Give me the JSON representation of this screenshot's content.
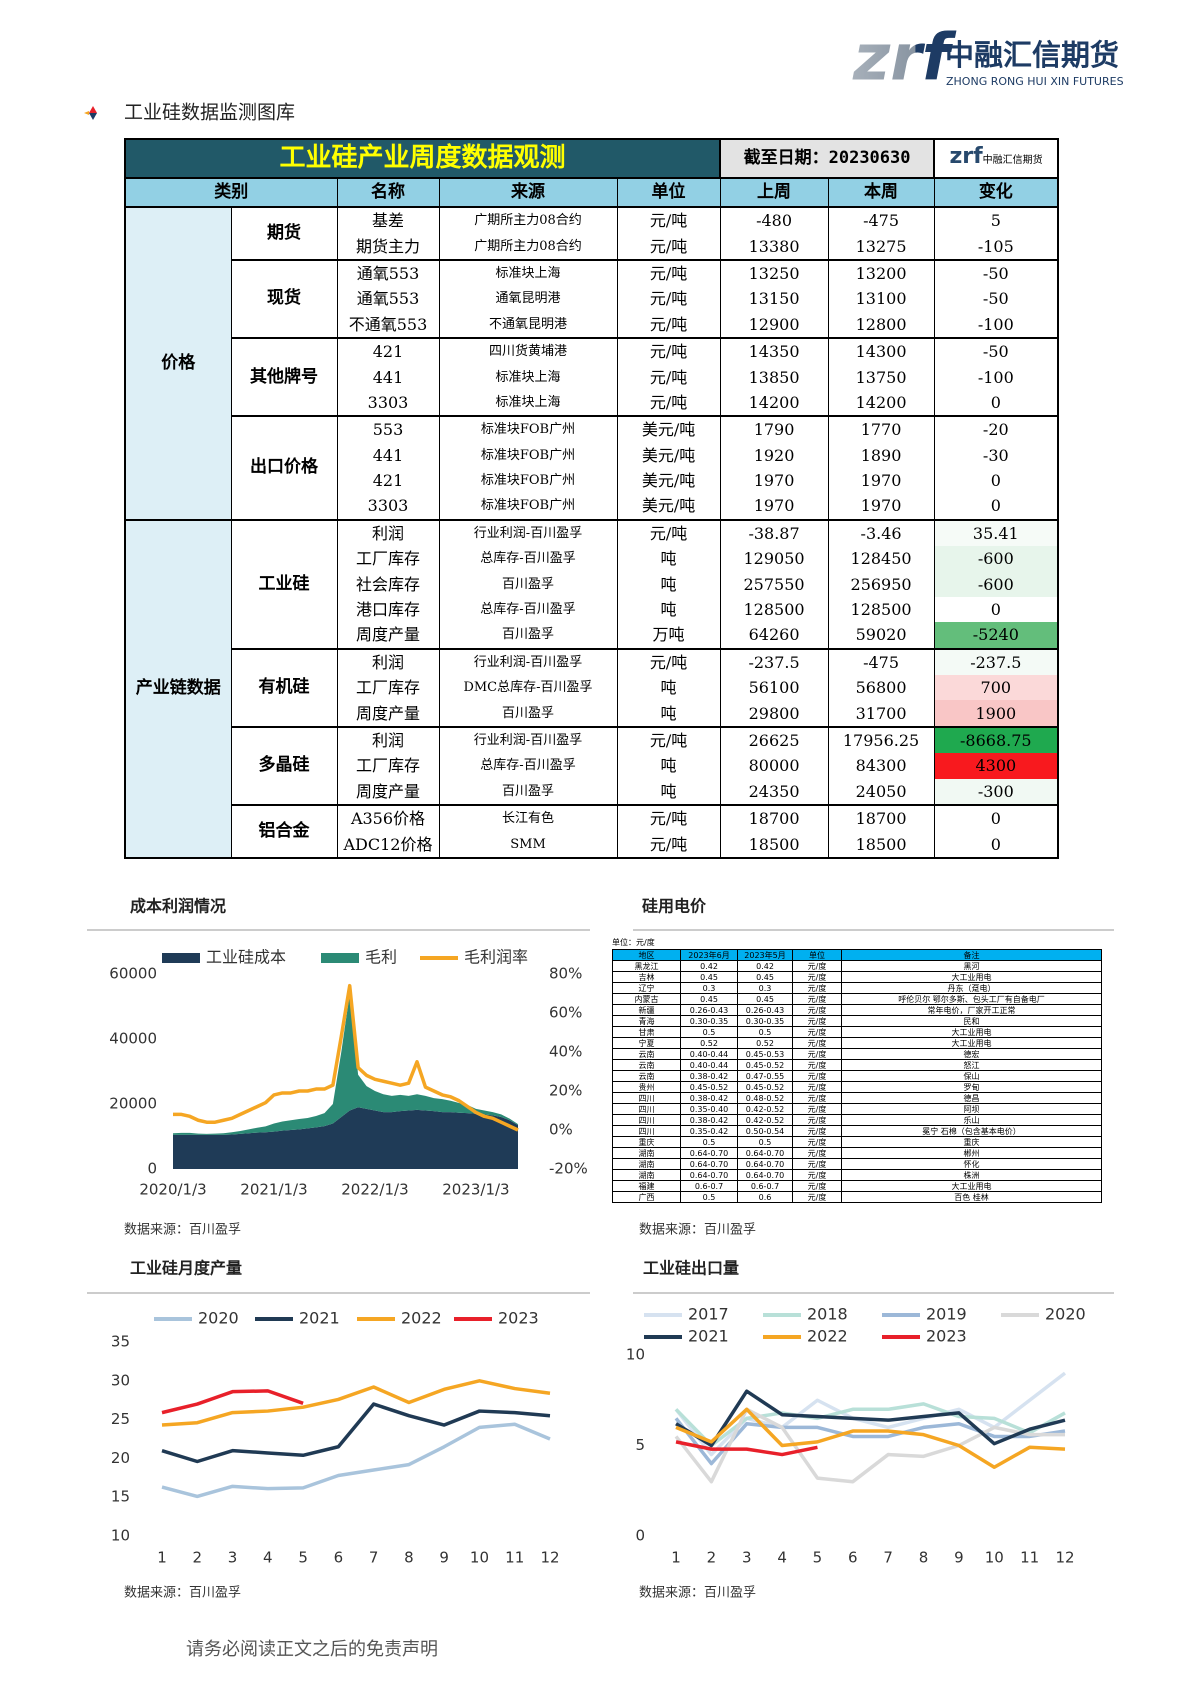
{
  "header": {
    "logo_mark": "zrf",
    "company": "中融汇信期货",
    "company_en": "ZHONG RONG HUI XIN FUTURES",
    "section_title": "工业硅数据监测图库"
  },
  "table": {
    "title": "工业硅产业周度数据观测",
    "date": "截至日期：20230630",
    "header": [
      "类别",
      "名称",
      "来源",
      "单位",
      "上周",
      "本周",
      "变化"
    ],
    "groups": [
      {
        "name": "价格",
        "subgroups": [
          {
            "name": "期货",
            "rows": [
              [
                "基差",
                "广期所主力08合约",
                "元/吨",
                "-480",
                "-475",
                "5"
              ],
              [
                "期货主力",
                "广期所主力08合约",
                "元/吨",
                "13380",
                "13275",
                "-105"
              ]
            ]
          },
          {
            "name": "现货",
            "rows": [
              [
                "通氧553",
                "标准块上海",
                "元/吨",
                "13250",
                "13200",
                "-50"
              ],
              [
                "通氧553",
                "通氧昆明港",
                "元/吨",
                "13150",
                "13100",
                "-50"
              ],
              [
                "不通氧553",
                "不通氧昆明港",
                "元/吨",
                "12900",
                "12800",
                "-100"
              ]
            ]
          },
          {
            "name": "其他牌号",
            "rows": [
              [
                "421",
                "四川货黄埔港",
                "元/吨",
                "14350",
                "14300",
                "-50"
              ],
              [
                "441",
                "标准块上海",
                "元/吨",
                "13850",
                "13750",
                "-100"
              ],
              [
                "3303",
                "标准块上海",
                "元/吨",
                "14200",
                "14200",
                "0"
              ]
            ]
          },
          {
            "name": "出口价格",
            "rows": [
              [
                "553",
                "标准块FOB广州",
                "美元/吨",
                "1790",
                "1770",
                "-20"
              ],
              [
                "441",
                "标准块FOB广州",
                "美元/吨",
                "1920",
                "1890",
                "-30"
              ],
              [
                "421",
                "标准块FOB广州",
                "美元/吨",
                "1970",
                "1970",
                "0"
              ],
              [
                "3303",
                "标准块FOB广州",
                "美元/吨",
                "1970",
                "1970",
                "0"
              ]
            ]
          }
        ]
      },
      {
        "name": "产业链数据",
        "subgroups": [
          {
            "name": "工业硅",
            "rows": [
              [
                "利润",
                "行业利润-百川盈孚",
                "元/吨",
                "-38.87",
                "-3.46",
                "35.41"
              ],
              [
                "工厂库存",
                "总库存-百川盈孚",
                "吨",
                "129050",
                "128450",
                "-600"
              ],
              [
                "社会库存",
                "百川盈孚",
                "吨",
                "257550",
                "256950",
                "-600"
              ],
              [
                "港口库存",
                "总库存-百川盈孚",
                "吨",
                "128500",
                "128500",
                "0"
              ],
              [
                "周度产量",
                "百川盈孚",
                "万吨",
                "64260",
                "59020",
                "-5240"
              ]
            ],
            "change_colors": [
              "#f6fbf7",
              "#e7f5eb",
              "#e7f5eb",
              "#ffffff",
              "#63be7b"
            ]
          },
          {
            "name": "有机硅",
            "rows": [
              [
                "利润",
                "行业利润-百川盈孚",
                "元/吨",
                "-237.5",
                "-475",
                "-237.5"
              ],
              [
                "工厂库存",
                "DMC总库存-百川盈孚",
                "吨",
                "56100",
                "56800",
                "700"
              ],
              [
                "周度产量",
                "百川盈孚",
                "吨",
                "29800",
                "31700",
                "1900"
              ]
            ],
            "change_colors": [
              "#f4faf6",
              "#fbd9d9",
              "#f9c6c6"
            ]
          },
          {
            "name": "多晶硅",
            "rows": [
              [
                "利润",
                "行业利润-百川盈孚",
                "元/吨",
                "26625",
                "17956.25",
                "-8668.75"
              ],
              [
                "工厂库存",
                "总库存-百川盈孚",
                "吨",
                "80000",
                "84300",
                "4300"
              ],
              [
                "周度产量",
                "百川盈孚",
                "吨",
                "24350",
                "24050",
                "-300"
              ]
            ],
            "change_colors": [
              "#1fa94f",
              "#f8191e",
              "#f1f9f3"
            ]
          },
          {
            "name": "铝合金",
            "rows": [
              [
                "A356价格",
                "长江有色",
                "元/吨",
                "18700",
                "18700",
                "0"
              ],
              [
                "ADC12价格",
                "SMM",
                "元/吨",
                "18500",
                "18500",
                "0"
              ]
            ]
          }
        ]
      }
    ]
  },
  "power_table": {
    "title": "硅用电价",
    "unit": "单位：元/度",
    "header": [
      "地区",
      "2023年6月",
      "2023年5月",
      "单位",
      "备注"
    ],
    "rows": [
      [
        "黑龙江",
        "0.42",
        "0.42",
        "元/度",
        "黑河"
      ],
      [
        "吉林",
        "0.45",
        "0.45",
        "元/度",
        "大工业用电"
      ],
      [
        "辽宁",
        "0.3",
        "0.3",
        "元/度",
        "丹东（趸电）"
      ],
      [
        "内蒙古",
        "0.45",
        "0.45",
        "元/度",
        "呼伦贝尔 鄂尔多斯、包头工厂有自备电厂"
      ],
      [
        "新疆",
        "0.26-0.43",
        "0.26-0.43",
        "元/度",
        "常年电价，厂家开工正常"
      ],
      [
        "青海",
        "0.30-0.35",
        "0.30-0.35",
        "元/度",
        "民和"
      ],
      [
        "甘肃",
        "0.5",
        "0.5",
        "元/度",
        "大工业用电"
      ],
      [
        "宁夏",
        "0.52",
        "0.52",
        "元/度",
        "大工业用电"
      ],
      [
        "云南",
        "0.40-0.44",
        "0.45-0.53",
        "元/度",
        "德宏"
      ],
      [
        "云南",
        "0.40-0.44",
        "0.45-0.52",
        "元/度",
        "怒江"
      ],
      [
        "云南",
        "0.38-0.42",
        "0.47-0.55",
        "元/度",
        "保山"
      ],
      [
        "贵州",
        "0.45-0.52",
        "0.45-0.52",
        "元/度",
        "罗甸"
      ],
      [
        "四川",
        "0.38-0.42",
        "0.48-0.52",
        "元/度",
        "德昌"
      ],
      [
        "四川",
        "0.35-0.40",
        "0.42-0.52",
        "元/度",
        "阿坝"
      ],
      [
        "四川",
        "0.38-0.42",
        "0.42-0.52",
        "元/度",
        "乐山"
      ],
      [
        "四川",
        "0.35-0.42",
        "0.50-0.54",
        "元/度",
        "冕宁 石棉（包含基本电价）"
      ],
      [
        "重庆",
        "0.5",
        "0.5",
        "元/度",
        "重庆"
      ],
      [
        "湖南",
        "0.64-0.70",
        "0.64-0.70",
        "元/度",
        "郴州"
      ],
      [
        "湖南",
        "0.64-0.70",
        "0.64-0.70",
        "元/度",
        "怀化"
      ],
      [
        "湖南",
        "0.64-0.70",
        "0.64-0.70",
        "元/度",
        "株洲"
      ],
      [
        "福建",
        "0.6-0.7",
        "0.6-0.7",
        "元/度",
        "大工业用电"
      ],
      [
        "广西",
        "0.5",
        "0.6",
        "元/度",
        "百色 桂林"
      ]
    ],
    "source": "数据来源：百川盈孚"
  },
  "chart_data": [
    {
      "type": "area",
      "title": "成本利润情况",
      "source": "数据来源：百川盈孚",
      "categories": [
        "2020/1/3",
        null,
        null,
        null,
        null,
        null,
        null,
        null,
        null,
        null,
        null,
        null,
        "2021/1/3",
        null,
        null,
        null,
        null,
        null,
        null,
        null,
        null,
        null,
        null,
        null,
        "2022/1/3",
        null,
        null,
        null,
        null,
        null,
        null,
        null,
        null,
        null,
        null,
        null,
        "2023/1/3",
        null,
        null,
        null,
        null,
        null
      ],
      "series": [
        {
          "name": "工业硅成本",
          "type": "area",
          "color": "#1f3b57",
          "values": [
            10500,
            10500,
            10500,
            10500,
            10500,
            10500,
            10500,
            10600,
            10800,
            11000,
            11200,
            11300,
            11500,
            11800,
            12000,
            12200,
            12500,
            12800,
            13200,
            14000,
            16000,
            18000,
            19000,
            18500,
            18000,
            17500,
            17500,
            17800,
            18000,
            18200,
            18000,
            17800,
            17500,
            17500,
            17300,
            17200,
            17000,
            16800,
            16500,
            16000,
            15000,
            13500
          ]
        },
        {
          "name": "毛利",
          "type": "area",
          "color": "#2b8a75",
          "values": [
            500,
            600,
            600,
            400,
            300,
            400,
            500,
            700,
            900,
            1200,
            1500,
            1800,
            2500,
            2800,
            3000,
            3200,
            3200,
            3500,
            4000,
            6000,
            20000,
            36000,
            10000,
            7000,
            6000,
            5500,
            5000,
            5000,
            4500,
            4800,
            4500,
            4000,
            4000,
            3500,
            3000,
            2500,
            1500,
            1200,
            1000,
            800,
            500,
            300
          ]
        },
        {
          "name": "毛利润率",
          "type": "line",
          "axis": "y2",
          "color": "#f5a623",
          "values": [
            8,
            8,
            7,
            5,
            4,
            4,
            5,
            6,
            8,
            10,
            12,
            14,
            18,
            19,
            19,
            20,
            20,
            21,
            21,
            23,
            48,
            74,
            32,
            28,
            26,
            25,
            24,
            23,
            24,
            35,
            22,
            20,
            18,
            17,
            15,
            12,
            9,
            7,
            6,
            4,
            2,
            0
          ]
        }
      ],
      "ylim": [
        0,
        60000
      ],
      "yticks": [
        0,
        20000,
        40000,
        60000
      ],
      "y2lim": [
        -20,
        80
      ],
      "y2ticks": [
        {
          "value": -20,
          "label": "-20%"
        },
        {
          "value": 0,
          "label": "0%"
        },
        {
          "value": 20,
          "label": "20%"
        },
        {
          "value": 40,
          "label": "40%"
        },
        {
          "value": 60,
          "label": "60%"
        },
        {
          "value": 80,
          "label": "80%"
        }
      ],
      "grid": false,
      "legend": "top"
    },
    {
      "type": "line",
      "title": "工业硅月度产量",
      "source": "数据来源：百川盈孚",
      "categories": [
        "1",
        "2",
        "3",
        "4",
        "5",
        "6",
        "7",
        "8",
        "9",
        "10",
        "11",
        "12"
      ],
      "series": [
        {
          "name": "2020",
          "color": "#a9c4dc",
          "values": [
            16.3,
            15.1,
            16.4,
            16.1,
            16.2,
            17.8,
            18.5,
            19.2,
            21.5,
            24.0,
            24.4,
            22.5
          ]
        },
        {
          "name": "2021",
          "color": "#203a54",
          "values": [
            21.0,
            19.6,
            21.0,
            20.7,
            20.4,
            21.5,
            27.0,
            25.5,
            24.3,
            26.1,
            25.9,
            25.5
          ]
        },
        {
          "name": "2022",
          "color": "#f5a623",
          "values": [
            24.3,
            24.6,
            25.9,
            26.1,
            26.6,
            27.6,
            29.2,
            27.2,
            28.9,
            30.0,
            29.0,
            28.4
          ]
        },
        {
          "name": "2023",
          "color": "#e8202a",
          "values": [
            25.9,
            27.0,
            28.6,
            28.7,
            27.1,
            null,
            null,
            null,
            null,
            null,
            null,
            null
          ]
        }
      ],
      "ylim": [
        10,
        35
      ],
      "yticks": [
        10,
        15,
        20,
        25,
        30,
        35
      ],
      "grid": false,
      "legend": "top"
    },
    {
      "type": "line",
      "title": "工业硅出口量",
      "source": "数据来源：百川盈孚",
      "categories": [
        "1",
        "2",
        "3",
        "4",
        "5",
        "6",
        "7",
        "8",
        "9",
        "10",
        "11",
        "12"
      ],
      "series": [
        {
          "name": "2017",
          "color": "#d6e2f0",
          "values": [
            7.0,
            4.5,
            6.5,
            6.0,
            7.5,
            6.5,
            6.0,
            6.5,
            7.0,
            6.0,
            7.5,
            9.0
          ]
        },
        {
          "name": "2018",
          "color": "#b8e0d8",
          "values": [
            7.0,
            5.0,
            6.5,
            6.8,
            6.5,
            7.0,
            7.0,
            7.3,
            6.6,
            6.5,
            5.7,
            6.8
          ]
        },
        {
          "name": "2019",
          "color": "#9cb8d8",
          "values": [
            6.5,
            4.0,
            6.2,
            6.0,
            6.0,
            5.5,
            5.5,
            6.0,
            6.2,
            5.5,
            5.5,
            5.8
          ]
        },
        {
          "name": "2020",
          "color": "#d9d9d9",
          "values": [
            5.5,
            3.0,
            7.0,
            6.0,
            3.2,
            3.0,
            4.5,
            4.4,
            5.0,
            6.0,
            5.6,
            5.6
          ]
        },
        {
          "name": "2021",
          "color": "#203a54",
          "values": [
            6.2,
            5.0,
            8.0,
            6.7,
            6.6,
            6.5,
            6.4,
            6.6,
            6.8,
            5.1,
            5.9,
            6.4
          ]
        },
        {
          "name": "2022",
          "color": "#f5a623",
          "values": [
            6.0,
            5.2,
            7.0,
            5.0,
            5.2,
            5.8,
            5.8,
            5.6,
            5.0,
            3.8,
            4.9,
            4.8
          ]
        },
        {
          "name": "2023",
          "color": "#e8202a",
          "values": [
            5.2,
            4.8,
            4.8,
            4.5,
            4.9,
            null,
            null,
            null,
            null,
            null,
            null,
            null
          ]
        }
      ],
      "ylim": [
        0,
        10
      ],
      "yticks": [
        0,
        5,
        10
      ],
      "grid": false,
      "legend": "top"
    }
  ]
}
